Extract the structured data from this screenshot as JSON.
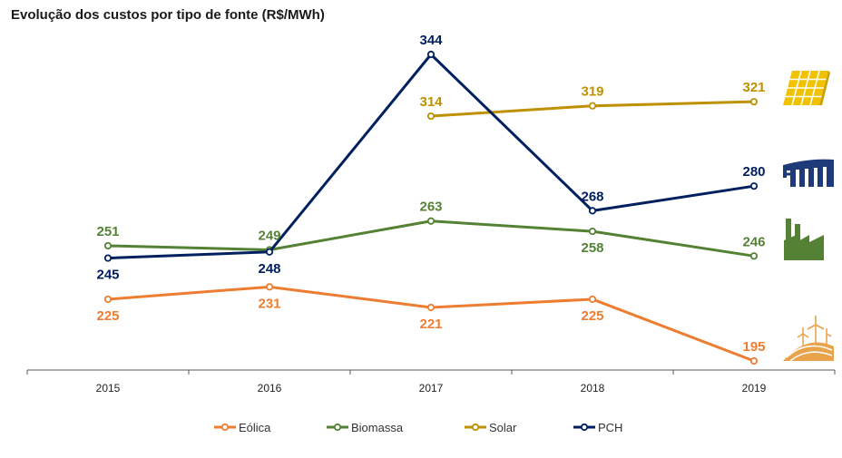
{
  "chart_data": {
    "type": "line",
    "title": "Evolução dos custos por tipo de fonte (R$/MWh)",
    "xlabel": "",
    "ylabel": "",
    "categories": [
      "2015",
      "2016",
      "2017",
      "2018",
      "2019"
    ],
    "ylim": [
      190,
      350
    ],
    "grid": false,
    "legend_position": "bottom",
    "series": [
      {
        "name": "Eólica",
        "color": "#ED7D31",
        "values": [
          225,
          231,
          221,
          225,
          195
        ],
        "label_pos": [
          "below",
          "below",
          "below",
          "below",
          "above"
        ],
        "icon": "wind-turbine-icon"
      },
      {
        "name": "Biomassa",
        "color": "#548235",
        "values": [
          251,
          249,
          263,
          258,
          246
        ],
        "label_pos": [
          "above",
          "above",
          "above",
          "below",
          "above"
        ],
        "icon": "factory-icon"
      },
      {
        "name": "Solar",
        "color": "#BF9000",
        "values": [
          null,
          null,
          314,
          319,
          321
        ],
        "label_pos": [
          "above",
          "above",
          "above",
          "above",
          "above"
        ],
        "icon": "solar-panel-icon"
      },
      {
        "name": "PCH",
        "color": "#002060",
        "values": [
          245,
          248,
          344,
          268,
          280
        ],
        "label_pos": [
          "below",
          "below",
          "above",
          "above",
          "above"
        ],
        "icon": "hydro-dam-icon"
      }
    ]
  }
}
